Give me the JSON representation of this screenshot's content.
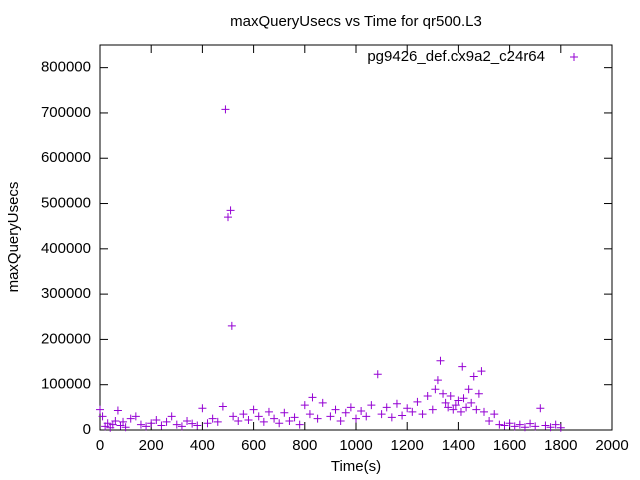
{
  "chart_data": {
    "type": "scatter",
    "title": "maxQueryUsecs vs Time for qr500.L3",
    "xlabel": "Time(s)",
    "ylabel": "maxQueryUsecs",
    "xlim": [
      0,
      2000
    ],
    "xticks": [
      0,
      200,
      400,
      600,
      800,
      1000,
      1200,
      1400,
      1600,
      1800,
      2000
    ],
    "ylim": [
      0,
      850000
    ],
    "yticks": [
      0,
      100000,
      200000,
      300000,
      400000,
      500000,
      600000,
      700000,
      800000
    ],
    "grid": false,
    "legend": "top-right",
    "x": [
      0,
      10,
      20,
      30,
      40,
      50,
      60,
      70,
      80,
      90,
      100,
      120,
      140,
      160,
      180,
      200,
      220,
      240,
      260,
      280,
      300,
      320,
      340,
      360,
      380,
      400,
      420,
      440,
      460,
      480,
      490,
      500,
      510,
      515,
      520,
      540,
      560,
      580,
      600,
      620,
      640,
      660,
      680,
      700,
      720,
      740,
      760,
      780,
      800,
      820,
      830,
      850,
      870,
      900,
      920,
      940,
      960,
      980,
      1000,
      1020,
      1040,
      1060,
      1085,
      1100,
      1120,
      1140,
      1160,
      1180,
      1200,
      1220,
      1240,
      1260,
      1280,
      1300,
      1310,
      1320,
      1330,
      1340,
      1350,
      1360,
      1370,
      1380,
      1390,
      1400,
      1410,
      1415,
      1420,
      1430,
      1440,
      1450,
      1460,
      1470,
      1480,
      1490,
      1500,
      1520,
      1540,
      1560,
      1580,
      1600,
      1620,
      1640,
      1660,
      1680,
      1700,
      1720,
      1740,
      1760,
      1780,
      1800
    ],
    "series": [
      {
        "name": "pg9426_def.cx9a2_c24r64",
        "color": "#9400d3",
        "values": [
          45000,
          30000,
          8000,
          15000,
          5000,
          12000,
          20000,
          43000,
          10000,
          18000,
          6000,
          25000,
          30000,
          12000,
          8000,
          15000,
          22000,
          10000,
          18000,
          30000,
          12000,
          8000,
          20000,
          14000,
          10000,
          48000,
          15000,
          25000,
          18000,
          52000,
          708000,
          470000,
          485000,
          230000,
          30000,
          20000,
          35000,
          22000,
          45000,
          30000,
          18000,
          40000,
          25000,
          15000,
          38000,
          20000,
          28000,
          12000,
          55000,
          35000,
          72000,
          25000,
          60000,
          30000,
          45000,
          20000,
          38000,
          50000,
          25000,
          42000,
          30000,
          55000,
          123000,
          35000,
          50000,
          28000,
          58000,
          32000,
          48000,
          40000,
          62000,
          35000,
          75000,
          45000,
          90000,
          110000,
          153000,
          80000,
          60000,
          50000,
          75000,
          45000,
          55000,
          65000,
          40000,
          140000,
          70000,
          50000,
          90000,
          60000,
          118000,
          45000,
          80000,
          130000,
          40000,
          20000,
          35000,
          12000,
          10000,
          15000,
          8000,
          12000,
          6000,
          14000,
          8000,
          48000,
          10000,
          6000,
          12000,
          5000
        ]
      }
    ]
  }
}
